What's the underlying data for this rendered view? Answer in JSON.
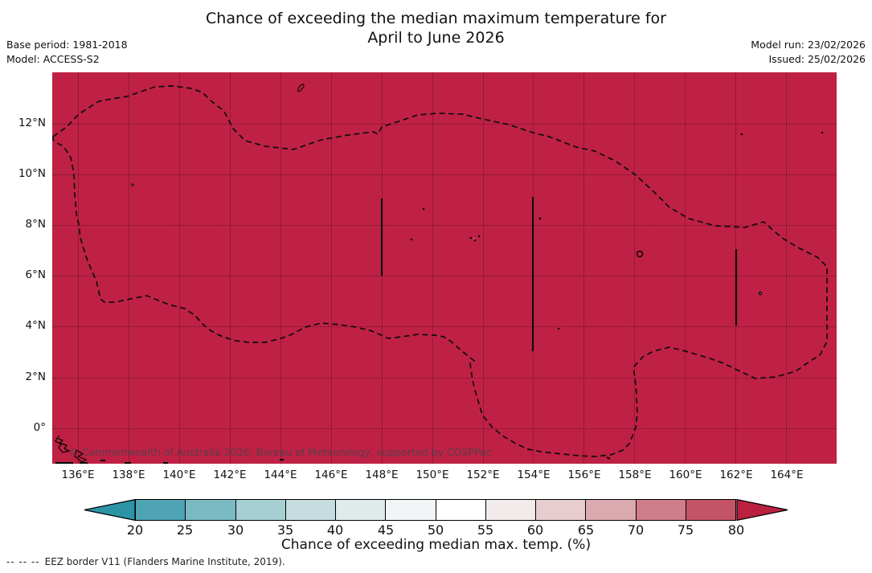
{
  "header": {
    "title_line1": "Chance of exceeding the median maximum temperature for",
    "title_line2": "April to June 2026",
    "base_period": "Base period: 1981-2018",
    "model": "Model: ACCESS-S2",
    "model_run": "Model run: 23/02/2026",
    "issued": "Issued: 25/02/2026"
  },
  "map": {
    "fill_color": "#bf2144",
    "watermark": "© Commonwealth of Australia 2026, Bureau of Meteorology, supported by COSPPac"
  },
  "axes": {
    "x_ticks": [
      "136°E",
      "138°E",
      "140°E",
      "142°E",
      "144°E",
      "146°E",
      "148°E",
      "150°E",
      "152°E",
      "154°E",
      "156°E",
      "158°E",
      "160°E",
      "162°E",
      "164°E"
    ],
    "y_ticks": [
      "12°N",
      "10°N",
      "8°N",
      "6°N",
      "4°N",
      "2°N",
      "0°"
    ]
  },
  "colorbar": {
    "label": "Chance of exceeding median max. temp. (%)",
    "ticks": [
      "20",
      "25",
      "30",
      "35",
      "40",
      "45",
      "50",
      "55",
      "60",
      "65",
      "70",
      "75",
      "80"
    ],
    "segment_colors": [
      "#4ea4b3",
      "#7cbac3",
      "#a6ced3",
      "#c6dde0",
      "#dfeaeb",
      "#f2f5f5",
      "#ffffff",
      "#f2ebeb",
      "#e7cdd0",
      "#dba9b0",
      "#cf7d88",
      "#c35365"
    ],
    "under_color": "#2d94a5",
    "over_color": "#bb2040"
  },
  "footer": {
    "legend_symbol": "--  --  --",
    "text": "EEZ border V11 (Flanders Marine Institute, 2019)."
  },
  "chart_data": {
    "type": "heatmap",
    "title": "Chance of exceeding the median maximum temperature for April to June 2026",
    "base_period": "1981-2018",
    "model": "ACCESS-S2",
    "model_run_date": "23/02/2026",
    "issued_date": "25/02/2026",
    "x_tick_labels": [
      "136°E",
      "138°E",
      "140°E",
      "142°E",
      "144°E",
      "146°E",
      "148°E",
      "150°E",
      "152°E",
      "154°E",
      "156°E",
      "158°E",
      "160°E",
      "162°E",
      "164°E"
    ],
    "y_tick_labels": [
      "0°",
      "2°N",
      "4°N",
      "6°N",
      "8°N",
      "10°N",
      "12°N"
    ],
    "approx_extent": {
      "lon": [
        "135°E",
        "166°E"
      ],
      "lat": [
        "1.5°S",
        "14°N"
      ]
    },
    "colorbar": {
      "label": "Chance of exceeding median max. temp. (%)",
      "orientation": "horizontal",
      "tick_values": [
        20,
        25,
        30,
        35,
        40,
        45,
        50,
        55,
        60,
        65,
        70,
        75,
        80
      ],
      "has_under_arrow": true,
      "has_over_arrow": true
    },
    "values_summary": "The entire mapped region (Micronesia / Papua New Guinea EEZ area) is shaded in the top class: chance of exceeding median maximum temperature greater than 80%",
    "uniform_value_class": ">80",
    "overlays": [
      "dashed EEZ border (EEZ border V11, Flanders Marine Institute 2019)",
      "small island outlines",
      "latitude/longitude gridlines"
    ]
  }
}
